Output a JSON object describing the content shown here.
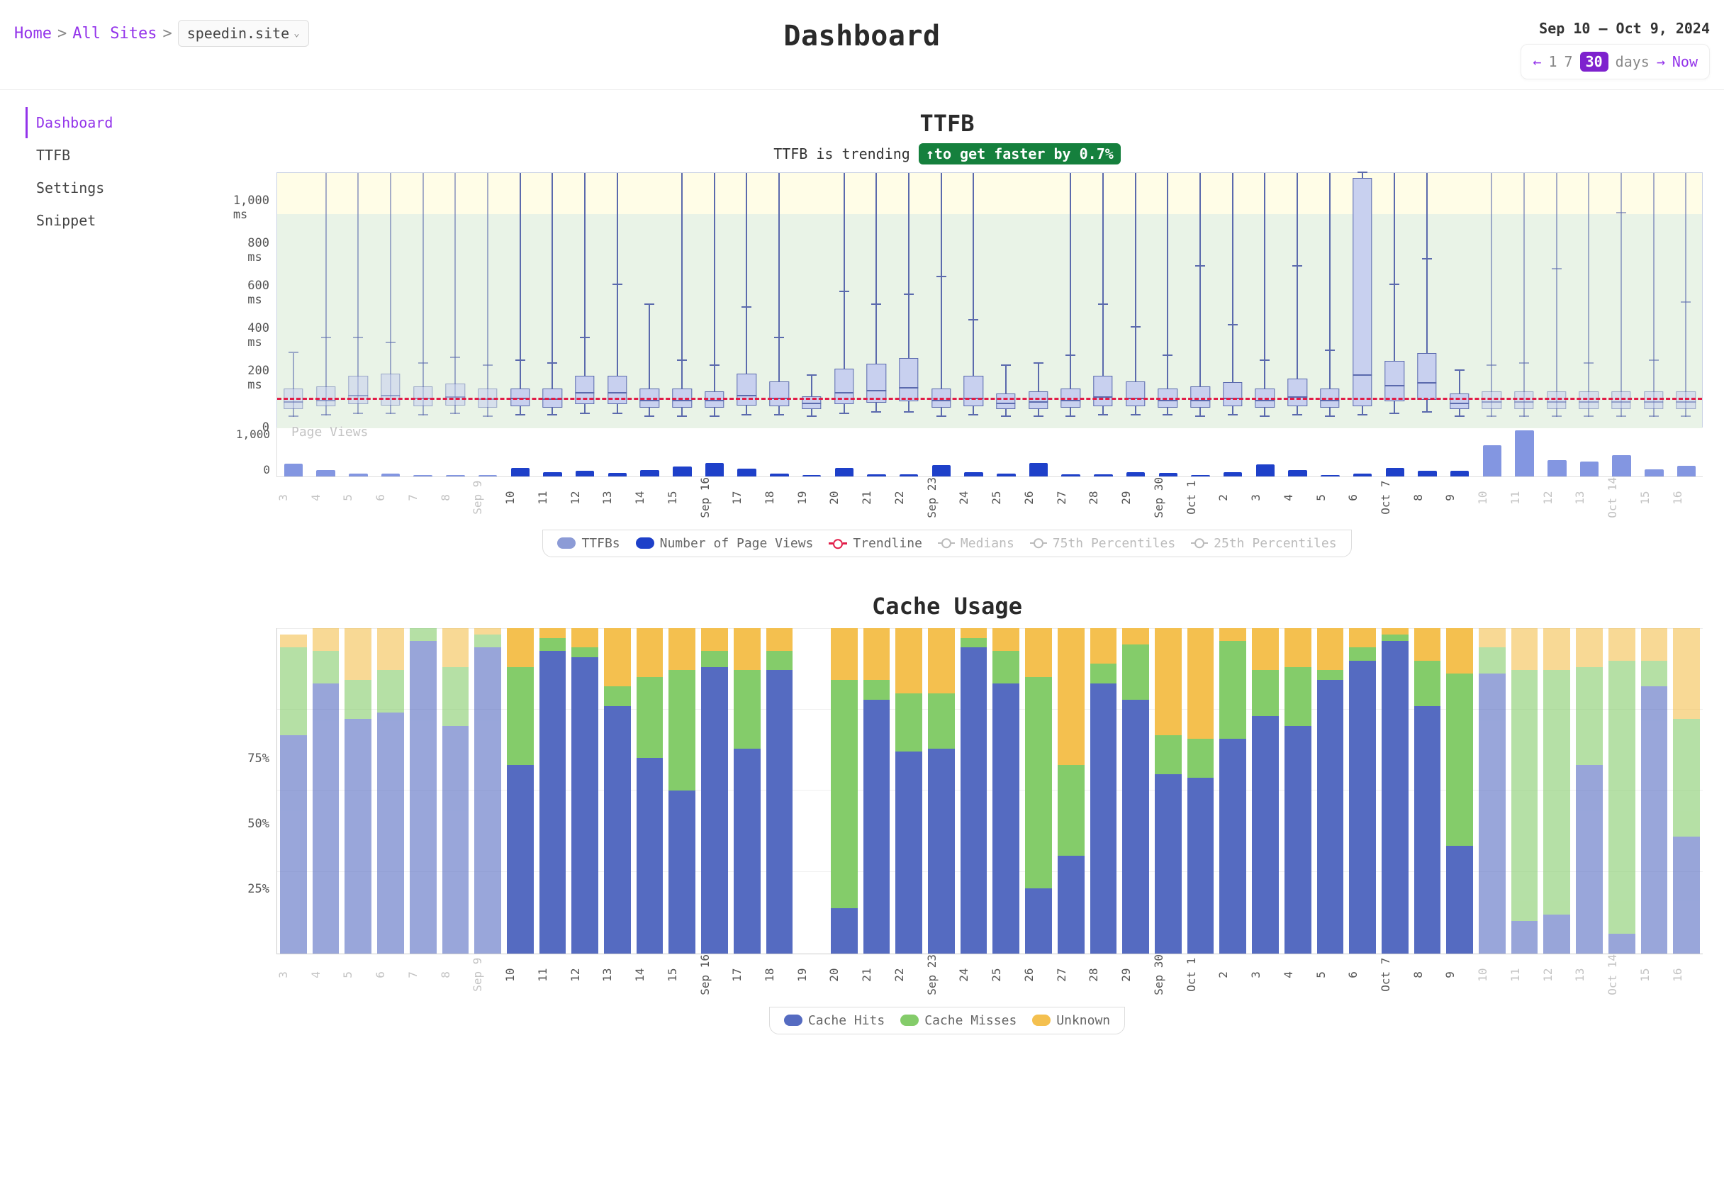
{
  "breadcrumb": {
    "home": "Home",
    "all_sites": "All Sites",
    "site": "speedin.site"
  },
  "page_title": "Dashboard",
  "date_range": "Sep 10 – Oct 9, 2024",
  "range_picker": {
    "prev": "←",
    "one": "1",
    "seven": "7",
    "thirty": "30",
    "days": "days",
    "next": "→",
    "now": "Now"
  },
  "sidebar": {
    "items": [
      {
        "label": "Dashboard",
        "active": true
      },
      {
        "label": "TTFB",
        "active": false
      },
      {
        "label": "Settings",
        "active": false
      },
      {
        "label": "Snippet",
        "active": false
      }
    ]
  },
  "ttfb_chart": {
    "title": "TTFB",
    "trend_prefix": "TTFB is trending",
    "trend_badge": "↑to get faster by 0.7%",
    "ylabel_unit": "ms",
    "ylim": [
      0,
      1000
    ],
    "ytick_step": 200,
    "yticks": [
      "0",
      "200 ms",
      "400 ms",
      "600 ms",
      "800 ms",
      "1,000 ms"
    ],
    "good_band_top_ms": 1000,
    "ok_band_top_ms": 800,
    "trendline_ms": 105,
    "box_color": "#c8d0ef",
    "whisker_color": "#5b6aad",
    "trendline_color": "#e11d48",
    "band_good_color": "#fffde7",
    "band_ok_color": "#e9f3e7",
    "pv_label": "Page Views",
    "pv_max": 1000,
    "pv_yticks": [
      "0",
      "1,000"
    ],
    "pv_color": "#1e40c9",
    "legend": {
      "ttfbs": "TTFBs",
      "pv": "Number of Page Views",
      "trend": "Trendline",
      "med": "Medians",
      "p75": "75th Percentiles",
      "p25": "25th Percentiles"
    },
    "days": [
      {
        "label": "3",
        "mm": "",
        "dimmed": true,
        "q1": 70,
        "med": 95,
        "q3": 150,
        "wl": 40,
        "wh": 290,
        "wo": 900,
        "pv": 260
      },
      {
        "label": "4",
        "dimmed": true,
        "q1": 80,
        "med": 100,
        "q3": 160,
        "wl": 45,
        "wh": 350,
        "wo": 1100,
        "pv": 130
      },
      {
        "label": "5",
        "dimmed": true,
        "q1": 90,
        "med": 120,
        "q3": 200,
        "wl": 50,
        "wh": 350,
        "wo": 1100,
        "pv": 55
      },
      {
        "label": "6",
        "dimmed": true,
        "q1": 85,
        "med": 120,
        "q3": 210,
        "wl": 50,
        "wh": 330,
        "wo": 1100,
        "pv": 55
      },
      {
        "label": "7",
        "dimmed": true,
        "q1": 80,
        "med": 110,
        "q3": 160,
        "wl": 45,
        "wh": 250,
        "wo": 1100,
        "pv": 30
      },
      {
        "label": "8",
        "dimmed": true,
        "q1": 85,
        "med": 115,
        "q3": 170,
        "wl": 50,
        "wh": 270,
        "wo": 1100,
        "pv": 30
      },
      {
        "label": "9",
        "mm": "Sep",
        "dimmed": true,
        "q1": 75,
        "med": 105,
        "q3": 150,
        "wl": 40,
        "wh": 240,
        "wo": 1100,
        "pv": 30
      },
      {
        "label": "10",
        "q1": 80,
        "med": 110,
        "q3": 150,
        "wl": 45,
        "wh": 260,
        "wo": 1100,
        "pv": 170
      },
      {
        "label": "11",
        "q1": 75,
        "med": 105,
        "q3": 150,
        "wl": 45,
        "wh": 250,
        "wo": 1100,
        "pv": 80
      },
      {
        "label": "12",
        "q1": 90,
        "med": 130,
        "q3": 200,
        "wl": 50,
        "wh": 350,
        "wo": 1100,
        "pv": 110
      },
      {
        "label": "13",
        "q1": 90,
        "med": 130,
        "q3": 200,
        "wl": 50,
        "wh": 560,
        "wo": 1100,
        "pv": 70
      },
      {
        "label": "14",
        "q1": 75,
        "med": 100,
        "q3": 150,
        "wl": 40,
        "wh": 480,
        "wo": 900,
        "pv": 130
      },
      {
        "label": "15",
        "q1": 75,
        "med": 100,
        "q3": 150,
        "wl": 40,
        "wh": 260,
        "wo": 1100,
        "pv": 210
      },
      {
        "label": "16",
        "mm": "Sep",
        "q1": 75,
        "med": 100,
        "q3": 140,
        "wl": 40,
        "wh": 240,
        "wo": 1100,
        "pv": 280
      },
      {
        "label": "17",
        "q1": 85,
        "med": 120,
        "q3": 210,
        "wl": 45,
        "wh": 470,
        "wo": 1100,
        "pv": 160
      },
      {
        "label": "18",
        "q1": 80,
        "med": 110,
        "q3": 180,
        "wl": 45,
        "wh": 350,
        "wo": 1100,
        "pv": 60
      },
      {
        "label": "19",
        "q1": 70,
        "med": 90,
        "q3": 120,
        "wl": 40,
        "wh": 200,
        "wo": 500,
        "pv": 30
      },
      {
        "label": "20",
        "q1": 90,
        "med": 130,
        "q3": 230,
        "wl": 50,
        "wh": 530,
        "wo": 1100,
        "pv": 180
      },
      {
        "label": "21",
        "q1": 95,
        "med": 140,
        "q3": 250,
        "wl": 55,
        "wh": 480,
        "wo": 1100,
        "pv": 40
      },
      {
        "label": "22",
        "q1": 100,
        "med": 150,
        "q3": 270,
        "wl": 55,
        "wh": 520,
        "wo": 1100,
        "pv": 45
      },
      {
        "label": "23",
        "mm": "Sep",
        "q1": 75,
        "med": 100,
        "q3": 150,
        "wl": 40,
        "wh": 590,
        "wo": 1100,
        "pv": 230
      },
      {
        "label": "24",
        "q1": 80,
        "med": 110,
        "q3": 200,
        "wl": 45,
        "wh": 420,
        "wo": 1100,
        "pv": 90
      },
      {
        "label": "25",
        "q1": 70,
        "med": 90,
        "q3": 130,
        "wl": 40,
        "wh": 240,
        "wo": 700,
        "pv": 60
      },
      {
        "label": "26",
        "q1": 70,
        "med": 95,
        "q3": 140,
        "wl": 40,
        "wh": 250,
        "wo": 850,
        "pv": 270
      },
      {
        "label": "27",
        "q1": 75,
        "med": 100,
        "q3": 150,
        "wl": 40,
        "wh": 280,
        "wo": 1100,
        "pv": 40
      },
      {
        "label": "28",
        "q1": 80,
        "med": 115,
        "q3": 200,
        "wl": 45,
        "wh": 480,
        "wo": 1100,
        "pv": 40
      },
      {
        "label": "29",
        "q1": 80,
        "med": 110,
        "q3": 180,
        "wl": 45,
        "wh": 390,
        "wo": 1100,
        "pv": 80
      },
      {
        "label": "30",
        "mm": "Sep",
        "q1": 75,
        "med": 100,
        "q3": 150,
        "wl": 45,
        "wh": 280,
        "wo": 1100,
        "pv": 70
      },
      {
        "label": "1",
        "mm": "Oct",
        "q1": 75,
        "med": 100,
        "q3": 160,
        "wl": 40,
        "wh": 630,
        "wo": 1100,
        "pv": 30
      },
      {
        "label": "2",
        "q1": 80,
        "med": 110,
        "q3": 175,
        "wl": 45,
        "wh": 400,
        "wo": 1100,
        "pv": 80
      },
      {
        "label": "3",
        "q1": 75,
        "med": 100,
        "q3": 150,
        "wl": 40,
        "wh": 260,
        "wo": 1100,
        "pv": 250
      },
      {
        "label": "4",
        "q1": 80,
        "med": 115,
        "q3": 190,
        "wl": 45,
        "wh": 630,
        "wo": 1100,
        "pv": 130
      },
      {
        "label": "5",
        "q1": 75,
        "med": 100,
        "q3": 150,
        "wl": 40,
        "wh": 300,
        "wo": 1100,
        "pv": 30
      },
      {
        "label": "6",
        "q1": 80,
        "med": 200,
        "q3": 980,
        "wl": 45,
        "wh": 1000,
        "wo": 1100,
        "pv": 60
      },
      {
        "label": "7",
        "mm": "Oct",
        "q1": 100,
        "med": 160,
        "q3": 260,
        "wl": 50,
        "wh": 560,
        "wo": 1100,
        "pv": 180
      },
      {
        "label": "8",
        "q1": 105,
        "med": 170,
        "q3": 290,
        "wl": 55,
        "wh": 660,
        "wo": 1100,
        "pv": 120
      },
      {
        "label": "9",
        "q1": 70,
        "med": 90,
        "q3": 130,
        "wl": 40,
        "wh": 220,
        "wo": 650,
        "pv": 120
      },
      {
        "label": "10",
        "dimmed": true,
        "q1": 70,
        "med": 95,
        "q3": 140,
        "wl": 40,
        "wh": 240,
        "wo": 1100,
        "pv": 640
      },
      {
        "label": "11",
        "dimmed": true,
        "q1": 70,
        "med": 95,
        "q3": 140,
        "wl": 40,
        "wh": 250,
        "wo": 1100,
        "pv": 940
      },
      {
        "label": "12",
        "dimmed": true,
        "q1": 70,
        "med": 95,
        "q3": 140,
        "wl": 40,
        "wh": 620,
        "wo": 1100,
        "pv": 330
      },
      {
        "label": "13",
        "dimmed": true,
        "q1": 70,
        "med": 95,
        "q3": 140,
        "wl": 40,
        "wh": 250,
        "wo": 1100,
        "pv": 300
      },
      {
        "label": "14",
        "mm": "Oct",
        "dimmed": true,
        "q1": 70,
        "med": 95,
        "q3": 140,
        "wl": 40,
        "wh": 840,
        "wo": 1100,
        "pv": 430
      },
      {
        "label": "15",
        "dimmed": true,
        "q1": 70,
        "med": 95,
        "q3": 140,
        "wl": 40,
        "wh": 260,
        "wo": 1100,
        "pv": 140
      },
      {
        "label": "16",
        "dimmed": true,
        "q1": 70,
        "med": 95,
        "q3": 140,
        "wl": 40,
        "wh": 490,
        "wo": 1100,
        "pv": 220
      }
    ]
  },
  "cache_chart": {
    "title": "Cache Usage",
    "ylim": [
      0,
      100
    ],
    "yticks": [
      "25%",
      "50%",
      "75%"
    ],
    "colors": {
      "hits": "#556bc1",
      "misses": "#84cc6a",
      "unknown": "#f4c04f"
    },
    "legend": {
      "hits": "Cache Hits",
      "misses": "Cache Misses",
      "unknown": "Unknown"
    },
    "days": [
      {
        "label": "3",
        "dimmed": true,
        "hits": 67,
        "misses": 27,
        "unknown": 4
      },
      {
        "label": "4",
        "dimmed": true,
        "hits": 83,
        "misses": 10,
        "unknown": 7
      },
      {
        "label": "5",
        "dimmed": true,
        "hits": 72,
        "misses": 12,
        "unknown": 16
      },
      {
        "label": "6",
        "dimmed": true,
        "hits": 74,
        "misses": 13,
        "unknown": 13
      },
      {
        "label": "7",
        "dimmed": true,
        "hits": 96,
        "misses": 4,
        "unknown": 0
      },
      {
        "label": "8",
        "dimmed": true,
        "hits": 70,
        "misses": 18,
        "unknown": 12
      },
      {
        "label": "9",
        "mm": "Sep",
        "dimmed": true,
        "hits": 94,
        "misses": 4,
        "unknown": 2
      },
      {
        "label": "10",
        "hits": 58,
        "misses": 30,
        "unknown": 12
      },
      {
        "label": "11",
        "hits": 93,
        "misses": 4,
        "unknown": 3
      },
      {
        "label": "12",
        "hits": 91,
        "misses": 3,
        "unknown": 6
      },
      {
        "label": "13",
        "hits": 76,
        "misses": 6,
        "unknown": 18
      },
      {
        "label": "14",
        "hits": 60,
        "misses": 25,
        "unknown": 15
      },
      {
        "label": "15",
        "hits": 50,
        "misses": 37,
        "unknown": 13
      },
      {
        "label": "16",
        "mm": "Sep",
        "hits": 88,
        "misses": 5,
        "unknown": 7
      },
      {
        "label": "17",
        "hits": 63,
        "misses": 24,
        "unknown": 13
      },
      {
        "label": "18",
        "hits": 87,
        "misses": 6,
        "unknown": 7
      },
      {
        "label": "19",
        "hits": 0,
        "misses": 0,
        "unknown": 0
      },
      {
        "label": "20",
        "hits": 14,
        "misses": 70,
        "unknown": 16
      },
      {
        "label": "21",
        "hits": 78,
        "misses": 6,
        "unknown": 16
      },
      {
        "label": "22",
        "hits": 62,
        "misses": 18,
        "unknown": 20
      },
      {
        "label": "23",
        "mm": "Sep",
        "hits": 63,
        "misses": 17,
        "unknown": 20
      },
      {
        "label": "24",
        "hits": 94,
        "misses": 3,
        "unknown": 3
      },
      {
        "label": "25",
        "hits": 83,
        "misses": 10,
        "unknown": 7
      },
      {
        "label": "26",
        "hits": 20,
        "misses": 65,
        "unknown": 15
      },
      {
        "label": "27",
        "hits": 30,
        "misses": 28,
        "unknown": 42
      },
      {
        "label": "28",
        "hits": 83,
        "misses": 6,
        "unknown": 11
      },
      {
        "label": "29",
        "hits": 78,
        "misses": 17,
        "unknown": 5
      },
      {
        "label": "30",
        "mm": "Sep",
        "hits": 55,
        "misses": 12,
        "unknown": 33
      },
      {
        "label": "1",
        "mm": "Oct",
        "hits": 54,
        "misses": 12,
        "unknown": 34
      },
      {
        "label": "2",
        "hits": 66,
        "misses": 30,
        "unknown": 4
      },
      {
        "label": "3",
        "hits": 73,
        "misses": 14,
        "unknown": 13
      },
      {
        "label": "4",
        "hits": 70,
        "misses": 18,
        "unknown": 12
      },
      {
        "label": "5",
        "hits": 84,
        "misses": 3,
        "unknown": 13
      },
      {
        "label": "6",
        "hits": 90,
        "misses": 4,
        "unknown": 6
      },
      {
        "label": "7",
        "mm": "Oct",
        "hits": 96,
        "misses": 2,
        "unknown": 2
      },
      {
        "label": "8",
        "hits": 76,
        "misses": 14,
        "unknown": 10
      },
      {
        "label": "9",
        "hits": 33,
        "misses": 53,
        "unknown": 14
      },
      {
        "label": "10",
        "dimmed": true,
        "hits": 86,
        "misses": 8,
        "unknown": 6
      },
      {
        "label": "11",
        "dimmed": true,
        "hits": 10,
        "misses": 77,
        "unknown": 13
      },
      {
        "label": "12",
        "dimmed": true,
        "hits": 12,
        "misses": 75,
        "unknown": 13
      },
      {
        "label": "13",
        "dimmed": true,
        "hits": 58,
        "misses": 30,
        "unknown": 12
      },
      {
        "label": "14",
        "mm": "Oct",
        "dimmed": true,
        "hits": 6,
        "misses": 84,
        "unknown": 10
      },
      {
        "label": "15",
        "dimmed": true,
        "hits": 82,
        "misses": 8,
        "unknown": 10
      },
      {
        "label": "16",
        "dimmed": true,
        "hits": 36,
        "misses": 36,
        "unknown": 28
      }
    ]
  }
}
